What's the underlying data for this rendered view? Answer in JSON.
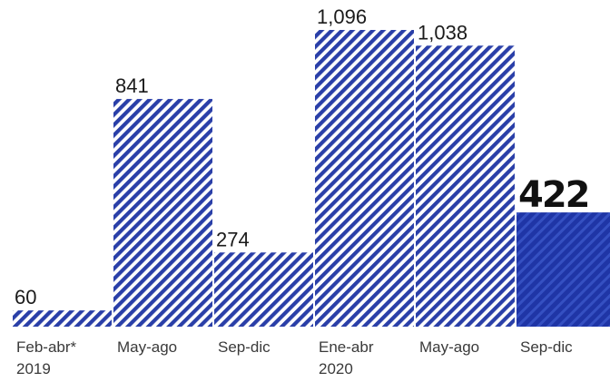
{
  "chart_data": {
    "type": "bar",
    "categories": [
      {
        "label": "Feb-abr*",
        "sublabel": "2019"
      },
      {
        "label": "May-ago",
        "sublabel": ""
      },
      {
        "label": "Sep-dic",
        "sublabel": ""
      },
      {
        "label": "Ene-abr",
        "sublabel": "2020"
      },
      {
        "label": "May-ago",
        "sublabel": ""
      },
      {
        "label": "Sep-dic",
        "sublabel": ""
      }
    ],
    "values": [
      60,
      841,
      274,
      1096,
      1038,
      422
    ],
    "value_labels": [
      "60",
      "841",
      "274",
      "1,096",
      "1,038",
      "422"
    ],
    "highlight_index": 5,
    "title": "",
    "xlabel": "",
    "ylabel": "",
    "ylim": [
      0,
      1200
    ],
    "grid": false,
    "legend": "none",
    "colors": {
      "hatch": "#2a3fa8",
      "highlight": "#1f35a6",
      "label": "#1b1b1b",
      "category": "#3a3a3a"
    }
  }
}
